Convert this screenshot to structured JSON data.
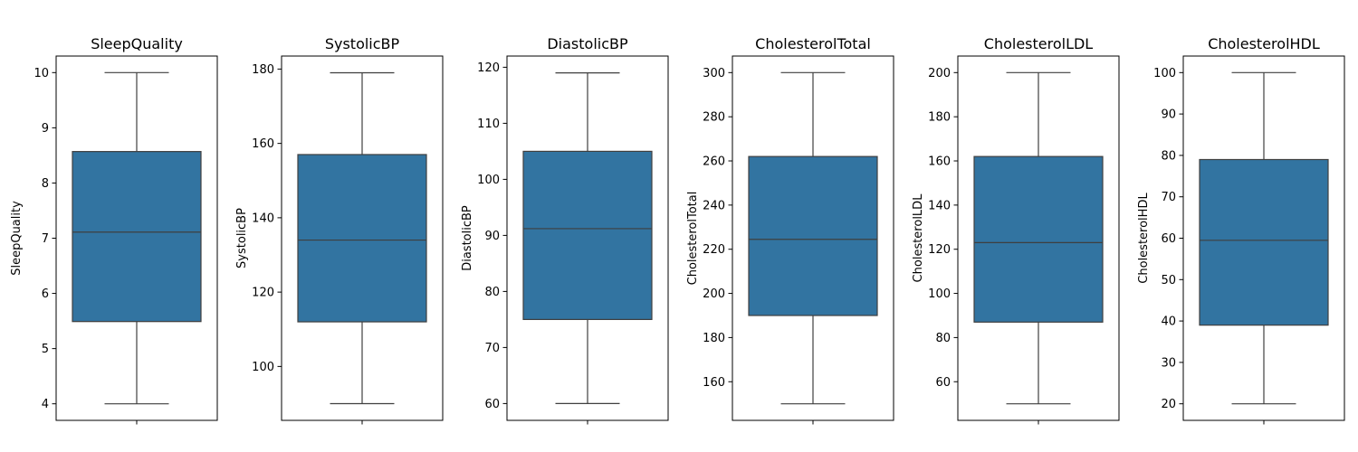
{
  "chart_data": [
    {
      "type": "box",
      "title": "SleepQuality",
      "ylabel": "SleepQuality",
      "ylim": [
        3.7,
        10.3
      ],
      "yticks": [
        4,
        5,
        6,
        7,
        8,
        9,
        10
      ],
      "box": {
        "whislo": 4.0,
        "q1": 5.49,
        "med": 7.11,
        "q3": 8.57,
        "whishi": 10.0
      }
    },
    {
      "type": "box",
      "title": "SystolicBP",
      "ylabel": "SystolicBP",
      "ylim": [
        85.5,
        183.5
      ],
      "yticks": [
        100,
        120,
        140,
        160,
        180
      ],
      "box": {
        "whislo": 90,
        "q1": 112,
        "med": 134,
        "q3": 157,
        "whishi": 179
      }
    },
    {
      "type": "box",
      "title": "DiastolicBP",
      "ylabel": "DiastolicBP",
      "ylim": [
        57.0,
        122.0
      ],
      "yticks": [
        60,
        70,
        80,
        90,
        100,
        110,
        120
      ],
      "box": {
        "whislo": 60,
        "q1": 75,
        "med": 91.2,
        "q3": 105,
        "whishi": 119
      }
    },
    {
      "type": "box",
      "title": "CholesterolTotal",
      "ylabel": "CholesterolTotal",
      "ylim": [
        142.5,
        307.5
      ],
      "yticks": [
        160,
        180,
        200,
        220,
        240,
        260,
        280,
        300
      ],
      "box": {
        "whislo": 150,
        "q1": 190,
        "med": 224.5,
        "q3": 262,
        "whishi": 300
      }
    },
    {
      "type": "box",
      "title": "CholesterolLDL",
      "ylabel": "CholesterolLDL",
      "ylim": [
        42.5,
        207.5
      ],
      "yticks": [
        60,
        80,
        100,
        120,
        140,
        160,
        180,
        200
      ],
      "box": {
        "whislo": 50,
        "q1": 87,
        "med": 123,
        "q3": 162,
        "whishi": 200
      }
    },
    {
      "type": "box",
      "title": "CholesterolHDL",
      "ylabel": "CholesterolHDL",
      "ylim": [
        16.0,
        104.0
      ],
      "yticks": [
        20,
        30,
        40,
        50,
        60,
        70,
        80,
        90,
        100
      ],
      "box": {
        "whislo": 20,
        "q1": 39,
        "med": 59.5,
        "q3": 79,
        "whishi": 100
      }
    }
  ],
  "colors": {
    "box_fill": "#3274a1",
    "line": "#3f3f3f",
    "axis": "#000000",
    "background": "#ffffff"
  }
}
